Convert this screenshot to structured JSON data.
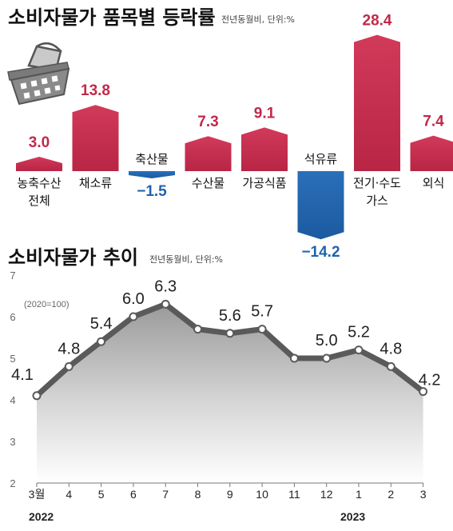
{
  "colors": {
    "positive": "#c2284a",
    "negative": "#1f63ad",
    "line": "#5a5a5a",
    "value_pos": "#c2284a",
    "value_neg": "#1f63ad"
  },
  "top_panel": {
    "title": "소비자물가 품목별 등락률",
    "unit_note": "전년동월비, 단위:%"
  },
  "bottom_panel": {
    "title": "소비자물가 추이",
    "unit_note": "전년동월비, 단위:%",
    "base_note": "(2020=100)"
  },
  "icons": [
    "shopping-basket-icon"
  ],
  "chart_data": [
    {
      "type": "bar",
      "title": "소비자물가 품목별 등락률",
      "unit": "전년동월비, 단위:%",
      "categories": [
        "농축수산\n전체",
        "채소류",
        "축산물",
        "수산물",
        "가공식품",
        "석유류",
        "전기·수도\n가스",
        "외식"
      ],
      "values": [
        3.0,
        13.8,
        -1.5,
        7.3,
        9.1,
        -14.2,
        28.4,
        7.4
      ],
      "value_labels": [
        "3.0",
        "13.8",
        "−1.5",
        "7.3",
        "9.1",
        "−14.2",
        "28.4",
        "7.4"
      ]
    },
    {
      "type": "area",
      "title": "소비자물가 추이",
      "unit": "전년동월비, 단위:%",
      "note": "(2020=100)",
      "categories": [
        "3월",
        "4",
        "5",
        "6",
        "7",
        "8",
        "9",
        "10",
        "11",
        "12",
        "1",
        "2",
        "3"
      ],
      "years": [
        "2022",
        "2023"
      ],
      "values": [
        4.1,
        4.8,
        5.4,
        6.0,
        6.3,
        5.7,
        5.6,
        5.7,
        5.0,
        5.0,
        5.2,
        4.8,
        4.2
      ],
      "point_labels": [
        "4.1",
        "4.8",
        "5.4",
        "6.0",
        "6.3",
        "",
        "5.6",
        "5.7",
        "",
        "5.0",
        "5.2",
        "4.8",
        "4.2"
      ],
      "yticks": [
        "2",
        "3",
        "4",
        "5",
        "6",
        "7"
      ],
      "ylim": [
        2,
        7
      ],
      "grid": false
    }
  ]
}
